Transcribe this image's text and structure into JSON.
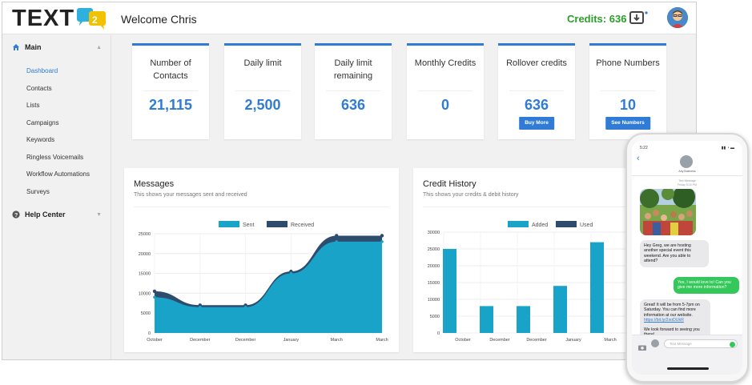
{
  "header": {
    "logo_text": "TEXT",
    "logo_mark_text": "2",
    "welcome": "Welcome Chris",
    "credits": "Credits: 636"
  },
  "sidebar": {
    "main_label": "Main",
    "items": [
      "Dashboard",
      "Contacts",
      "Lists",
      "Campaigns",
      "Keywords",
      "Ringless Voicemails",
      "Workflow Automations",
      "Surveys"
    ],
    "active_index": 0,
    "help_label": "Help Center"
  },
  "cards": [
    {
      "title": "Number of Contacts",
      "value": "21,115"
    },
    {
      "title": "Daily limit",
      "value": "2,500"
    },
    {
      "title": "Daily limit remaining",
      "value": "636"
    },
    {
      "title": "Monthly Credits",
      "value": "0"
    },
    {
      "title": "Rollover credits",
      "value": "636",
      "button": "Buy More"
    },
    {
      "title": "Phone Numbers",
      "value": "10",
      "button": "See Numbers"
    }
  ],
  "messages_panel": {
    "title": "Messages",
    "subtitle": "This shows your messages sent and received"
  },
  "credit_panel": {
    "title": "Credit History",
    "subtitle": "This shows your credits & debit history"
  },
  "chart_data": [
    {
      "type": "area",
      "categories": [
        "October",
        "December",
        "December",
        "January",
        "March",
        "March"
      ],
      "series": [
        {
          "name": "Sent",
          "values": [
            9000,
            6500,
            6500,
            15000,
            23000,
            23000
          ],
          "color": "#1aa3c9"
        },
        {
          "name": "Received",
          "values": [
            10500,
            7000,
            7000,
            15500,
            24500,
            24500
          ],
          "color": "#2d4c6e"
        }
      ],
      "ylim": [
        0,
        25000
      ],
      "yticks": [
        0,
        5000,
        10000,
        15000,
        20000,
        25000
      ],
      "legend": "top-center",
      "grid": true
    },
    {
      "type": "bar",
      "categories": [
        "October",
        "December",
        "December",
        "January",
        "March"
      ],
      "series": [
        {
          "name": "Added",
          "values": [
            25000,
            8000,
            8000,
            14000,
            27000
          ],
          "color": "#1aa3c9"
        },
        {
          "name": "Used",
          "values": [
            0,
            0,
            0,
            0,
            0
          ],
          "color": "#2d4c6e"
        }
      ],
      "ylim": [
        0,
        30000
      ],
      "yticks": [
        0,
        5000,
        10000,
        15000,
        20000,
        25000,
        30000
      ],
      "legend": "top-center",
      "grid": true
    }
  ],
  "phone": {
    "time": "5:22",
    "contact": "Any Business",
    "thread_label": "Text Message",
    "thread_time": "Friday 5:15 PM",
    "messages": [
      {
        "dir": "in",
        "text": "Hey Greg, we are hosting another special event this weekend. Are you able to attend?"
      },
      {
        "dir": "out",
        "text": "Yes, I would love to! Can you give me more information?"
      },
      {
        "dir": "in",
        "text": "Great! It will be from 5-7pm on Saturday. You can find more information at our website.",
        "link": "https://bit.ly/2xoDUkR",
        "tail": "We look forward to seeing you there!"
      }
    ],
    "input_placeholder": "Text Message"
  },
  "colors": {
    "accent": "#2f7bd6",
    "credits": "#2a9d2a",
    "sent": "#1aa3c9",
    "received": "#2d4c6e"
  }
}
